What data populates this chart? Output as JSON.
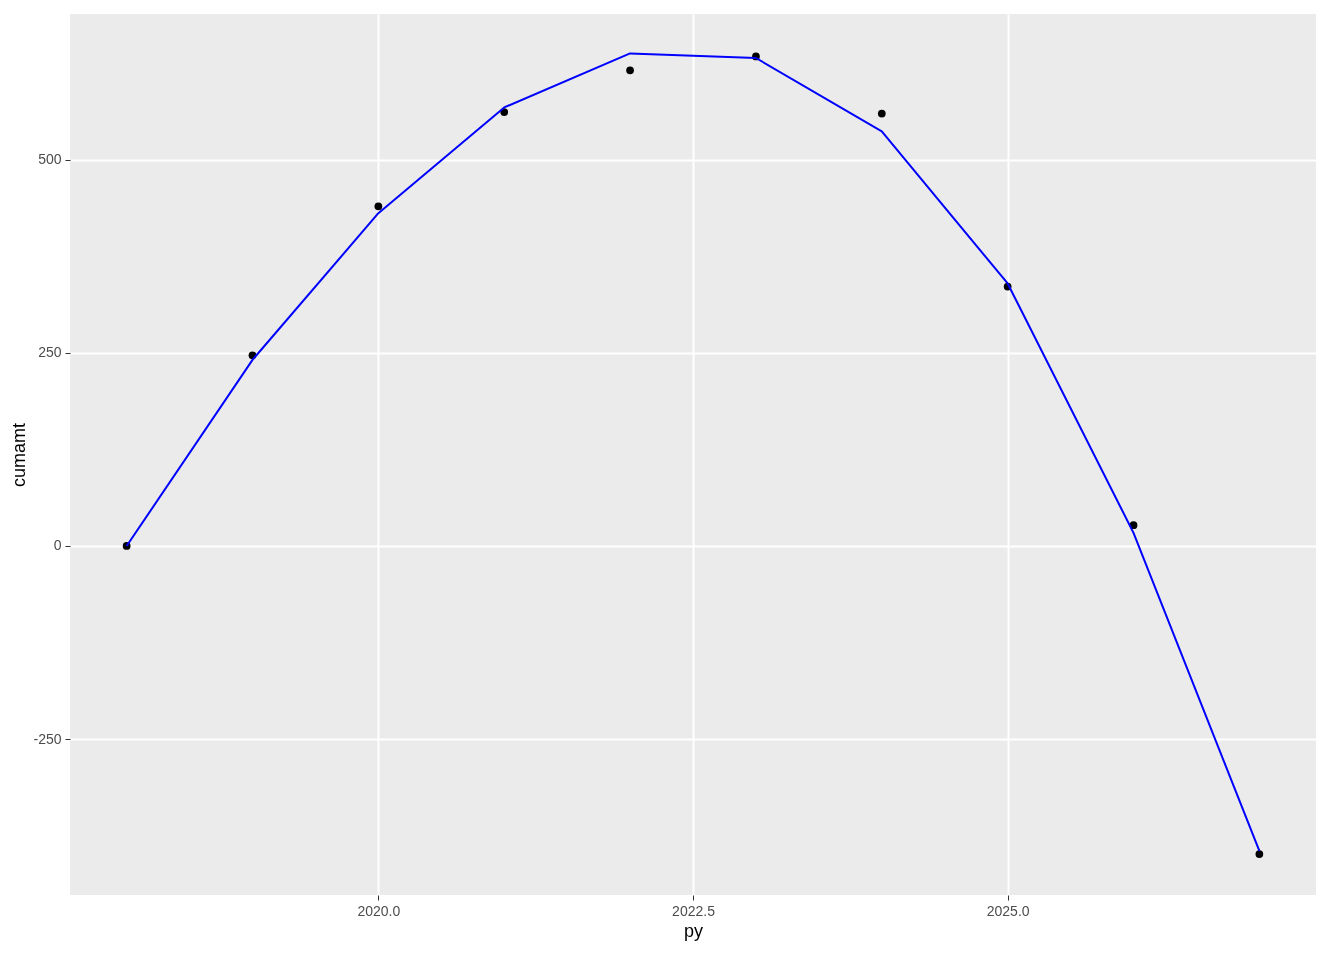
{
  "chart_data": {
    "type": "line",
    "xlabel": "py",
    "ylabel": "cumamt",
    "x": [
      2018,
      2019,
      2020,
      2021,
      2022,
      2023,
      2024,
      2025,
      2026,
      2027
    ],
    "series": [
      {
        "type": "scatter",
        "color": "#000000",
        "marker": "circle",
        "values": [
          0,
          247,
          440,
          562,
          616,
          634,
          560,
          336,
          27,
          -399
        ]
      },
      {
        "color": "#0000ff",
        "values": [
          0,
          241,
          431,
          568,
          638,
          632,
          537,
          340,
          17,
          -395
        ]
      }
    ],
    "xlim": [
      2017.55,
      2027.45
    ],
    "ylim": [
      -452,
      689
    ],
    "xticks": [
      {
        "value": 2020,
        "label": "2020.0"
      },
      {
        "value": 2022.5,
        "label": "2022.5"
      },
      {
        "value": 2025,
        "label": "2025.0"
      }
    ],
    "yticks": [
      -250,
      0,
      250,
      500
    ],
    "grid": true
  }
}
